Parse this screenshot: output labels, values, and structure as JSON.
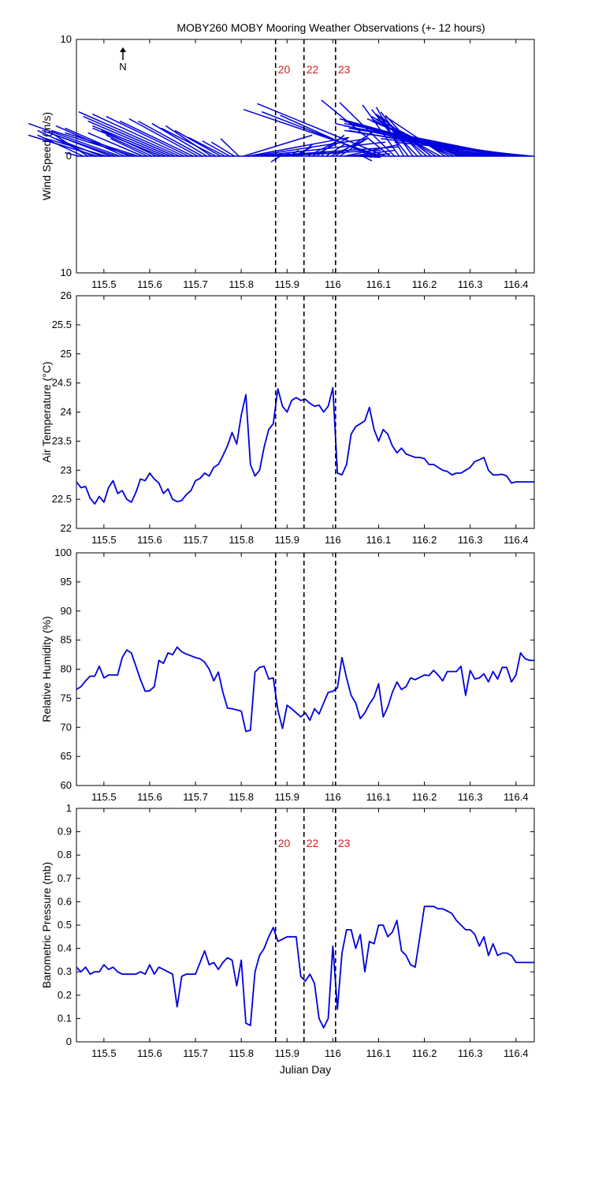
{
  "title": "MOBY260 MOBY Mooring Weather Observations (+- 12 hours)",
  "north_label": "N",
  "colors": {
    "series": "#0000dd",
    "axis": "#000000",
    "marker_label": "#cc2222"
  },
  "chart_data": [
    {
      "type": "line",
      "subtype": "wind-stick",
      "ylabel": "Wind Speed (m/s)",
      "xlim": [
        115.44,
        116.44
      ],
      "ylim": [
        -10,
        10
      ],
      "xticks": [
        115.5,
        115.6,
        115.7,
        115.8,
        115.9,
        116,
        116.1,
        116.2,
        116.3,
        116.4
      ],
      "yticks": [
        -10,
        0,
        10
      ],
      "ytick_labels": [
        "10",
        "0",
        "10"
      ],
      "x": [
        115.445,
        115.455,
        115.465,
        115.475,
        115.485,
        115.495,
        115.505,
        115.515,
        115.525,
        115.535,
        115.545,
        115.555,
        115.565,
        115.575,
        115.585,
        115.595,
        115.605,
        115.615,
        115.625,
        115.635,
        115.645,
        115.655,
        115.665,
        115.675,
        115.685,
        115.695,
        115.705,
        115.715,
        115.725,
        115.735,
        115.745,
        115.755,
        115.765,
        115.775,
        115.785,
        115.795,
        115.805,
        115.815,
        115.825,
        115.835,
        115.845,
        115.855,
        115.865,
        115.875,
        115.885,
        115.895,
        115.905,
        115.915,
        115.925,
        115.935,
        115.945,
        115.955,
        115.965,
        115.975,
        115.985,
        115.995,
        116.005,
        116.015,
        116.025,
        116.035,
        116.045,
        116.055,
        116.065,
        116.075,
        116.085,
        116.095,
        116.105,
        116.115,
        116.125,
        116.135,
        116.145,
        116.155,
        116.165,
        116.175,
        116.185,
        116.195,
        116.205,
        116.215,
        116.225,
        116.235,
        116.245,
        116.255,
        116.265,
        116.275,
        116.285,
        116.295,
        116.305,
        116.315,
        116.325,
        116.335,
        116.345,
        116.355,
        116.365,
        116.375,
        116.385,
        116.395,
        116.405,
        116.415,
        116.425,
        116.435
      ],
      "u": [
        -0.3,
        -1.0,
        -0.8,
        -1.2,
        -1.5,
        -1.0,
        -1.4,
        -1.2,
        -1.6,
        -2.0,
        -1.5,
        -1.4,
        -1.8,
        -1.6,
        -1.2,
        -0.8,
        -1.0,
        -1.2,
        -1.5,
        -1.6,
        -1.8,
        -2.0,
        -2.2,
        -2.0,
        -1.8,
        -1.6,
        -1.5,
        -1.4,
        -1.2,
        -1.0,
        -1.2,
        -1.0,
        -0.8,
        -0.6,
        -0.5,
        -0.4,
        1.5,
        2.2,
        2.5,
        2.8,
        3.0,
        2.5,
        1.6,
        0.5,
        -0.2,
        0.1,
        0.2,
        0.4,
        0.3,
        -0.1,
        0.6,
        0.8,
        0.6,
        0.1,
        0.4,
        0.8,
        0.8,
        0.6,
        1.2,
        1.0,
        0.8,
        0.5,
        0.2,
        0.1,
        -2.0,
        -2.5,
        -3.0,
        -2.8,
        -1.5,
        -1.2,
        -0.8,
        -0.6,
        -0.8,
        -0.7,
        -0.9,
        -0.8,
        -1.0,
        -1.2,
        -1.4,
        -1.5,
        -1.3,
        -1.6,
        -1.8,
        -2.0,
        -2.5,
        -2.6,
        -2.8,
        -3.0,
        -3.2,
        -2.8,
        -3.0,
        -3.2,
        -3.4,
        -3.5,
        -3.2,
        -3.6,
        -3.8,
        -3.6,
        -3.2,
        -3.0
      ],
      "v": [
        0.3,
        1.8,
        2.0,
        2.2,
        1.8,
        1.5,
        1.6,
        1.8,
        2.2,
        2.8,
        2.6,
        2.4,
        2.2,
        2.0,
        2.0,
        1.5,
        1.8,
        2.2,
        2.4,
        2.6,
        3.0,
        3.4,
        3.8,
        3.6,
        3.4,
        3.0,
        3.2,
        3.0,
        2.8,
        2.6,
        2.4,
        2.2,
        1.6,
        1.3,
        1.2,
        1.5,
        1.8,
        1.6,
        1.5,
        1.2,
        0.8,
        0.5,
        0.3,
        0.1,
        -0.5,
        0.3,
        0.5,
        0.8,
        1.0,
        0.2,
        1.2,
        1.6,
        1.8,
        0.4,
        1.0,
        1.5,
        2.0,
        1.5,
        1.0,
        0.5,
        0.2,
        -0.1,
        -0.4,
        -0.1,
        3.5,
        3.8,
        4.0,
        4.5,
        4.8,
        4.6,
        4.4,
        4.2,
        4.0,
        3.8,
        3.6,
        3.5,
        3.4,
        3.6,
        3.4,
        3.2,
        3.4,
        3.2,
        3.0,
        3.2,
        3.0,
        2.8,
        3.0,
        3.2,
        2.8,
        2.6,
        2.4,
        2.2,
        2.6,
        2.8,
        2.5,
        2.4,
        2.2,
        2.0,
        1.5,
        1.2
      ]
    },
    {
      "type": "line",
      "ylabel": "Air Temperature (°C)",
      "xlim": [
        115.44,
        116.44
      ],
      "ylim": [
        22,
        26
      ],
      "xticks": [
        115.5,
        115.6,
        115.7,
        115.8,
        115.9,
        116,
        116.1,
        116.2,
        116.3,
        116.4
      ],
      "yticks": [
        22,
        22.5,
        23,
        23.5,
        24,
        24.5,
        25,
        25.5,
        26
      ],
      "ytick_labels": [
        "22",
        "22.5",
        "23",
        "23.5",
        "24",
        "24.5",
        "25",
        "25.5",
        "26"
      ],
      "x": [
        115.44,
        115.45,
        115.46,
        115.47,
        115.48,
        115.49,
        115.5,
        115.51,
        115.52,
        115.53,
        115.54,
        115.55,
        115.56,
        115.57,
        115.58,
        115.59,
        115.6,
        115.61,
        115.62,
        115.63,
        115.64,
        115.65,
        115.66,
        115.67,
        115.68,
        115.69,
        115.7,
        115.71,
        115.72,
        115.73,
        115.74,
        115.75,
        115.76,
        115.77,
        115.78,
        115.79,
        115.8,
        115.81,
        115.82,
        115.83,
        115.84,
        115.85,
        115.86,
        115.87,
        115.88,
        115.89,
        115.9,
        115.91,
        115.92,
        115.93,
        115.94,
        115.95,
        115.96,
        115.97,
        115.98,
        115.99,
        116.0,
        116.01,
        116.02,
        116.03,
        116.04,
        116.05,
        116.06,
        116.07,
        116.08,
        116.09,
        116.1,
        116.11,
        116.12,
        116.13,
        116.14,
        116.15,
        116.16,
        116.17,
        116.18,
        116.19,
        116.2,
        116.21,
        116.22,
        116.23,
        116.24,
        116.25,
        116.26,
        116.27,
        116.28,
        116.29,
        116.3,
        116.31,
        116.32,
        116.33,
        116.34,
        116.35,
        116.36,
        116.37,
        116.38,
        116.39,
        116.4,
        116.41,
        116.42,
        116.43,
        116.44
      ],
      "y": [
        22.8,
        22.7,
        22.72,
        22.52,
        22.42,
        22.55,
        22.45,
        22.7,
        22.82,
        22.6,
        22.65,
        22.5,
        22.45,
        22.62,
        22.85,
        22.82,
        22.95,
        22.85,
        22.78,
        22.6,
        22.68,
        22.5,
        22.46,
        22.48,
        22.58,
        22.65,
        22.82,
        22.86,
        22.95,
        22.9,
        23.05,
        23.1,
        23.25,
        23.42,
        23.65,
        23.45,
        23.95,
        24.3,
        23.1,
        22.9,
        23.0,
        23.4,
        23.7,
        23.8,
        24.4,
        24.1,
        24.0,
        24.2,
        24.25,
        24.2,
        24.22,
        24.15,
        24.1,
        24.12,
        24.0,
        24.1,
        24.42,
        22.95,
        22.92,
        23.1,
        23.62,
        23.75,
        23.8,
        23.85,
        24.08,
        23.7,
        23.5,
        23.7,
        23.62,
        23.42,
        23.3,
        23.38,
        23.28,
        23.25,
        23.22,
        23.22,
        23.2,
        23.1,
        23.1,
        23.05,
        23.0,
        22.98,
        22.92,
        22.95,
        22.95,
        23.0,
        23.05,
        23.15,
        23.18,
        23.22,
        23.0,
        22.92,
        22.92,
        22.93,
        22.9,
        22.78,
        22.8,
        22.8,
        22.8,
        22.8,
        22.8
      ]
    },
    {
      "type": "line",
      "ylabel": "Relative Humidity (%)",
      "xlim": [
        115.44,
        116.44
      ],
      "ylim": [
        60,
        100
      ],
      "xticks": [
        115.5,
        115.6,
        115.7,
        115.8,
        115.9,
        116,
        116.1,
        116.2,
        116.3,
        116.4
      ],
      "yticks": [
        60,
        65,
        70,
        75,
        80,
        85,
        90,
        95,
        100
      ],
      "ytick_labels": [
        "60",
        "65",
        "70",
        "75",
        "80",
        "85",
        "90",
        "95",
        "100"
      ],
      "x": [
        115.44,
        115.45,
        115.46,
        115.47,
        115.48,
        115.49,
        115.5,
        115.51,
        115.52,
        115.53,
        115.54,
        115.55,
        115.56,
        115.57,
        115.58,
        115.59,
        115.6,
        115.61,
        115.62,
        115.63,
        115.64,
        115.65,
        115.66,
        115.67,
        115.68,
        115.69,
        115.7,
        115.71,
        115.72,
        115.73,
        115.74,
        115.75,
        115.76,
        115.77,
        115.78,
        115.79,
        115.8,
        115.81,
        115.82,
        115.83,
        115.84,
        115.85,
        115.86,
        115.87,
        115.88,
        115.89,
        115.9,
        115.91,
        115.92,
        115.93,
        115.94,
        115.95,
        115.96,
        115.97,
        115.98,
        115.99,
        116.0,
        116.01,
        116.02,
        116.03,
        116.04,
        116.05,
        116.06,
        116.07,
        116.08,
        116.09,
        116.1,
        116.11,
        116.12,
        116.13,
        116.14,
        116.15,
        116.16,
        116.17,
        116.18,
        116.19,
        116.2,
        116.21,
        116.22,
        116.23,
        116.24,
        116.25,
        116.26,
        116.27,
        116.28,
        116.29,
        116.3,
        116.31,
        116.32,
        116.33,
        116.34,
        116.35,
        116.36,
        116.37,
        116.38,
        116.39,
        116.4,
        116.41,
        116.42,
        116.43,
        116.44
      ],
      "y": [
        76.5,
        77.0,
        78.0,
        78.8,
        78.8,
        80.5,
        78.5,
        79.0,
        79.0,
        79.0,
        82.0,
        83.3,
        82.8,
        80.5,
        78.2,
        76.2,
        76.3,
        77.0,
        81.5,
        81.0,
        82.8,
        82.5,
        83.8,
        83.0,
        82.6,
        82.3,
        82.0,
        81.8,
        81.2,
        80.0,
        78.0,
        79.5,
        76.0,
        73.3,
        73.2,
        73.0,
        72.8,
        69.3,
        69.5,
        79.5,
        80.3,
        80.5,
        78.3,
        78.5,
        73.0,
        69.8,
        73.8,
        73.2,
        72.5,
        71.8,
        72.5,
        71.2,
        73.2,
        72.3,
        74.2,
        76.0,
        76.2,
        76.8,
        82.0,
        78.5,
        75.5,
        74.2,
        71.5,
        72.5,
        74.0,
        75.2,
        77.5,
        71.8,
        73.5,
        76.0,
        77.8,
        76.5,
        77.0,
        78.5,
        78.2,
        78.6,
        79.0,
        78.9,
        79.8,
        79.0,
        78.0,
        79.6,
        79.6,
        79.6,
        80.5,
        75.5,
        79.8,
        78.3,
        78.5,
        79.2,
        77.8,
        79.6,
        78.3,
        80.3,
        80.3,
        77.8,
        79.0,
        82.8,
        81.8,
        81.5,
        81.5
      ]
    },
    {
      "type": "line",
      "ylabel": "Barometric Pressure (mb)",
      "xlabel": "Julian Day",
      "xlim": [
        115.44,
        116.44
      ],
      "ylim": [
        0,
        1
      ],
      "xticks": [
        115.5,
        115.6,
        115.7,
        115.8,
        115.9,
        116,
        116.1,
        116.2,
        116.3,
        116.4
      ],
      "yticks": [
        0,
        0.1,
        0.2,
        0.3,
        0.4,
        0.5,
        0.6,
        0.7,
        0.8,
        0.9,
        1
      ],
      "ytick_labels": [
        "0",
        "0.1",
        "0.2",
        "0.3",
        "0.4",
        "0.5",
        "0.6",
        "0.7",
        "0.8",
        "0.9",
        "1"
      ],
      "x": [
        115.44,
        115.45,
        115.46,
        115.47,
        115.48,
        115.49,
        115.5,
        115.51,
        115.52,
        115.53,
        115.54,
        115.55,
        115.56,
        115.57,
        115.58,
        115.59,
        115.6,
        115.61,
        115.62,
        115.63,
        115.64,
        115.65,
        115.66,
        115.67,
        115.68,
        115.69,
        115.7,
        115.71,
        115.72,
        115.73,
        115.74,
        115.75,
        115.76,
        115.77,
        115.78,
        115.79,
        115.8,
        115.81,
        115.82,
        115.83,
        115.84,
        115.85,
        115.86,
        115.87,
        115.88,
        115.89,
        115.9,
        115.91,
        115.92,
        115.93,
        115.94,
        115.95,
        115.96,
        115.97,
        115.98,
        115.99,
        116.0,
        116.01,
        116.02,
        116.03,
        116.04,
        116.05,
        116.06,
        116.07,
        116.08,
        116.09,
        116.1,
        116.11,
        116.12,
        116.13,
        116.14,
        116.15,
        116.16,
        116.17,
        116.18,
        116.19,
        116.2,
        116.21,
        116.22,
        116.23,
        116.24,
        116.25,
        116.26,
        116.27,
        116.28,
        116.29,
        116.3,
        116.31,
        116.32,
        116.33,
        116.34,
        116.35,
        116.36,
        116.37,
        116.38,
        116.39,
        116.4,
        116.41,
        116.42,
        116.43,
        116.44
      ],
      "y": [
        0.32,
        0.3,
        0.32,
        0.29,
        0.3,
        0.3,
        0.33,
        0.31,
        0.32,
        0.3,
        0.29,
        0.29,
        0.29,
        0.29,
        0.3,
        0.29,
        0.33,
        0.29,
        0.32,
        0.31,
        0.3,
        0.29,
        0.15,
        0.28,
        0.29,
        0.29,
        0.29,
        0.34,
        0.39,
        0.33,
        0.34,
        0.31,
        0.34,
        0.36,
        0.35,
        0.24,
        0.35,
        0.08,
        0.07,
        0.3,
        0.37,
        0.4,
        0.45,
        0.49,
        0.43,
        0.44,
        0.45,
        0.45,
        0.45,
        0.28,
        0.26,
        0.29,
        0.25,
        0.1,
        0.06,
        0.1,
        0.41,
        0.14,
        0.38,
        0.48,
        0.48,
        0.4,
        0.46,
        0.3,
        0.43,
        0.42,
        0.5,
        0.5,
        0.45,
        0.47,
        0.52,
        0.39,
        0.37,
        0.33,
        0.32,
        0.45,
        0.58,
        0.58,
        0.58,
        0.57,
        0.57,
        0.56,
        0.55,
        0.52,
        0.5,
        0.48,
        0.48,
        0.46,
        0.41,
        0.45,
        0.37,
        0.42,
        0.37,
        0.38,
        0.38,
        0.37,
        0.34,
        0.34,
        0.34,
        0.34,
        0.34
      ]
    }
  ],
  "markers": [
    {
      "label": "20",
      "x": 115.875
    },
    {
      "label": "22",
      "x": 115.937
    },
    {
      "label": "23",
      "x": 116.006
    }
  ]
}
